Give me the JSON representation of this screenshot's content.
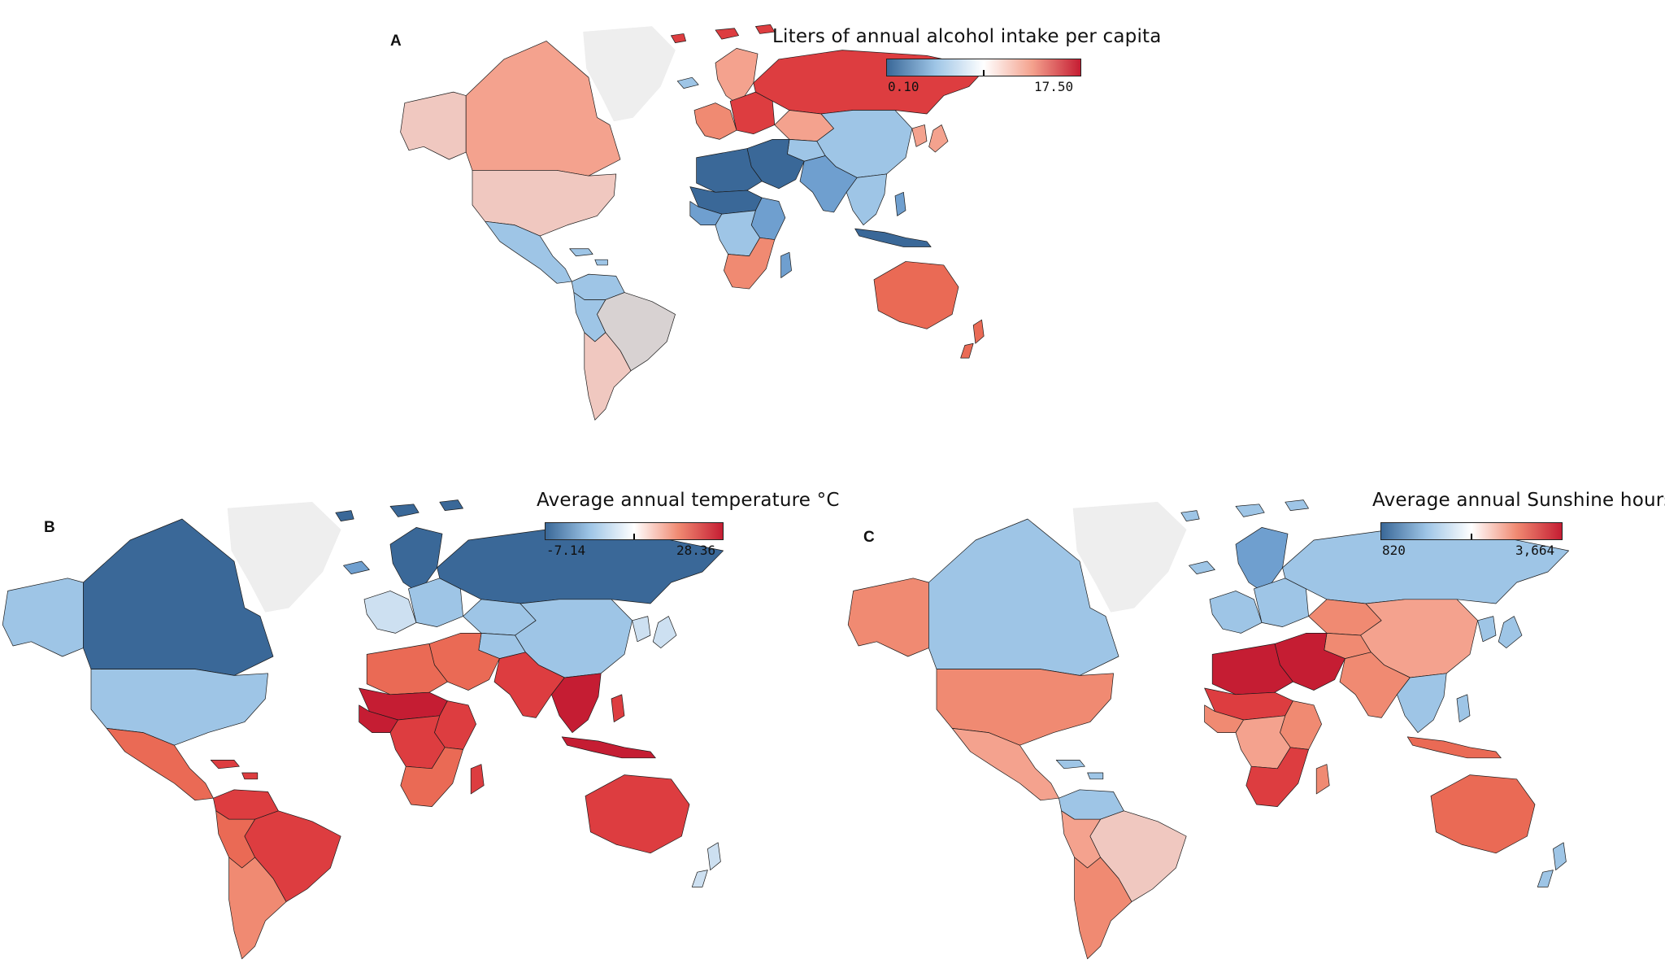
{
  "colors": {
    "dark_blue": "#3a6898",
    "mid_blue": "#6f9fcf",
    "light_blue": "#9ec5e6",
    "pale_blue": "#cde0f1",
    "neutral": "#d8d2d2",
    "pale_pink": "#f0c8c0",
    "light_salmon": "#f4a28e",
    "salmon": "#f08a72",
    "orange_red": "#ea6a55",
    "red": "#dd3d40",
    "dark_red": "#c51d33",
    "no_data_grey": "#eeeeee",
    "border": "#1a1a1a"
  },
  "panels": [
    {
      "letter": "A",
      "legend": {
        "title": "Liters of annual alcohol intake per capita",
        "min_label": "0.10",
        "max_label": "17.50",
        "gradient": [
          "#3a6898",
          "#9ec5e6",
          "#ffffff",
          "#f4a28e",
          "#c51d33"
        ]
      },
      "region_colors": {
        "greenland": "no_data_grey",
        "alaska": "pale_pink",
        "canada": "light_salmon",
        "usa": "pale_pink",
        "mexico_central_america": "light_blue",
        "caribbean": "light_blue",
        "colombia_venezuela": "light_blue",
        "brazil": "neutral",
        "andes": "light_blue",
        "argentina_chile": "pale_pink",
        "iceland": "light_blue",
        "scandinavia": "light_salmon",
        "western_europe": "salmon",
        "eastern_europe": "red",
        "russia": "red",
        "kazakhstan": "light_salmon",
        "central_asia": "light_blue",
        "mongolia_china": "light_blue",
        "korea_japan": "light_salmon",
        "middle_east": "dark_blue",
        "north_africa": "dark_blue",
        "sahel": "dark_blue",
        "west_africa": "mid_blue",
        "east_africa": "mid_blue",
        "central_africa": "light_blue",
        "southern_africa": "salmon",
        "madagascar": "mid_blue",
        "india_region": "mid_blue",
        "southeast_asia": "light_blue",
        "indonesia": "dark_blue",
        "philippines": "mid_blue",
        "australia": "orange_red",
        "new_zealand": "orange_red",
        "svalbard_arctic_islands": "red"
      }
    },
    {
      "letter": "B",
      "legend": {
        "title": "Average annual temperature °C",
        "min_label": "-7.14",
        "max_label": "28.36",
        "gradient": [
          "#3a6898",
          "#9ec5e6",
          "#ffffff",
          "#f08a72",
          "#c51d33"
        ]
      },
      "region_colors": {
        "greenland": "no_data_grey",
        "alaska": "light_blue",
        "canada": "dark_blue",
        "usa": "light_blue",
        "mexico_central_america": "orange_red",
        "caribbean": "red",
        "colombia_venezuela": "red",
        "brazil": "red",
        "andes": "orange_red",
        "argentina_chile": "salmon",
        "iceland": "mid_blue",
        "scandinavia": "dark_blue",
        "western_europe": "pale_blue",
        "eastern_europe": "light_blue",
        "russia": "dark_blue",
        "kazakhstan": "light_blue",
        "central_asia": "light_blue",
        "mongolia_china": "light_blue",
        "korea_japan": "pale_blue",
        "middle_east": "orange_red",
        "north_africa": "orange_red",
        "sahel": "dark_red",
        "west_africa": "dark_red",
        "east_africa": "red",
        "central_africa": "red",
        "southern_africa": "orange_red",
        "madagascar": "red",
        "india_region": "red",
        "southeast_asia": "dark_red",
        "indonesia": "dark_red",
        "philippines": "red",
        "australia": "red",
        "new_zealand": "pale_blue",
        "svalbard_arctic_islands": "dark_blue"
      }
    },
    {
      "letter": "C",
      "legend": {
        "title": "Average annual Sunshine hours",
        "min_label": "820",
        "max_label": "3,664",
        "gradient": [
          "#3a6898",
          "#9ec5e6",
          "#ffffff",
          "#f08a72",
          "#c51d33"
        ]
      },
      "region_colors": {
        "greenland": "no_data_grey",
        "alaska": "salmon",
        "canada": "light_blue",
        "usa": "salmon",
        "mexico_central_america": "light_salmon",
        "caribbean": "light_blue",
        "colombia_venezuela": "light_blue",
        "brazil": "pale_pink",
        "andes": "light_salmon",
        "argentina_chile": "salmon",
        "iceland": "light_blue",
        "scandinavia": "mid_blue",
        "western_europe": "light_blue",
        "eastern_europe": "light_blue",
        "russia": "light_blue",
        "kazakhstan": "salmon",
        "central_asia": "salmon",
        "mongolia_china": "light_salmon",
        "korea_japan": "light_blue",
        "middle_east": "dark_red",
        "north_africa": "dark_red",
        "sahel": "red",
        "west_africa": "salmon",
        "east_africa": "salmon",
        "central_africa": "light_salmon",
        "southern_africa": "red",
        "madagascar": "salmon",
        "india_region": "salmon",
        "southeast_asia": "light_blue",
        "indonesia": "orange_red",
        "philippines": "light_blue",
        "australia": "orange_red",
        "new_zealand": "light_blue",
        "svalbard_arctic_islands": "light_blue"
      }
    }
  ]
}
